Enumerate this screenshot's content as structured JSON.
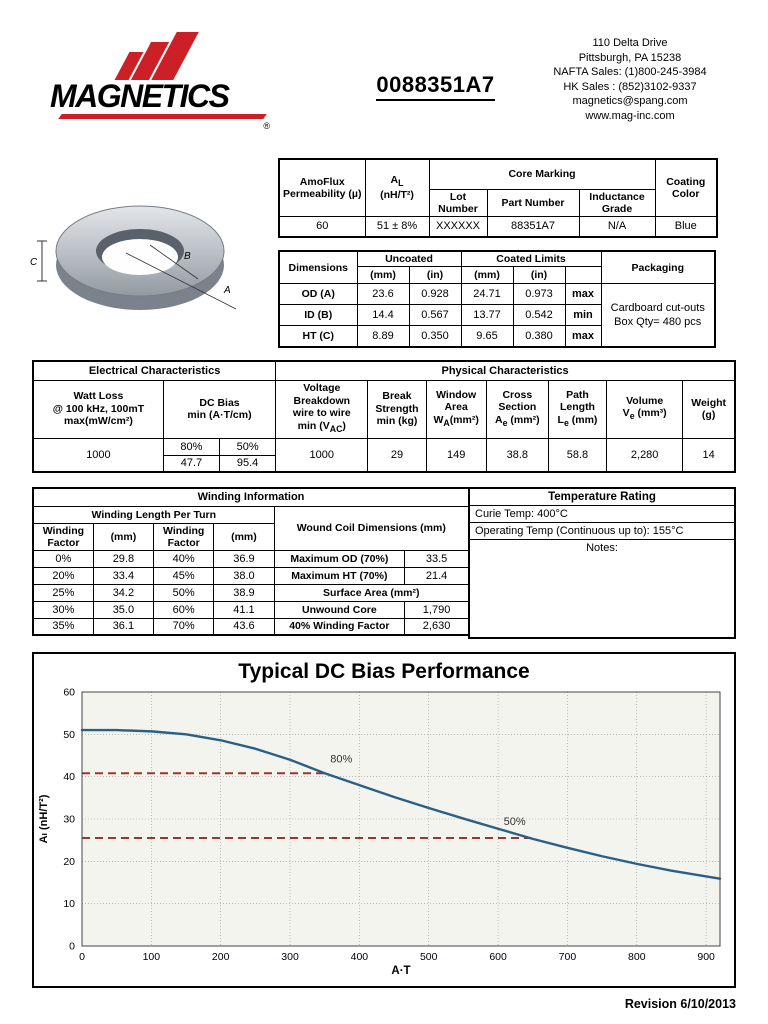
{
  "page": {
    "footer": "Revision 6/10/2013"
  },
  "header": {
    "brand": "MAGNETICS",
    "registered": "®",
    "part_number": "0088351A7",
    "address_lines": [
      "110 Delta Drive",
      "Pittsburgh, PA 15238",
      "NAFTA Sales: (1)800-245-3984",
      "HK Sales : (852)3102-9337",
      "magnetics@spang.com",
      "www.mag-inc.com"
    ]
  },
  "core_diagram": {
    "dim_a": "A",
    "dim_b": "B",
    "dim_c": "C"
  },
  "marking_table": {
    "permeability_header": "AmoFlux Permeability (µ)",
    "al_pre": "A",
    "al_sub": "L",
    "al_unit": "(nH/T²)",
    "core_marking_header": "Core Marking",
    "lot_header": "Lot Number",
    "part_header": "Part Number",
    "grade_header": "Inductance Grade",
    "coating_header": "Coating Color",
    "permeability": "60",
    "al_value": "51 ± 8%",
    "lot": "XXXXXX",
    "part": "88351A7",
    "grade": "N/A",
    "coating": "Blue"
  },
  "dimensions_table": {
    "dimensions_header": "Dimensions",
    "uncoated_header": "Uncoated",
    "coated_header": "Coated Limits",
    "packaging_header": "Packaging",
    "mm": "(mm)",
    "in": "(in)",
    "rows": [
      {
        "label": "OD (A)",
        "unc_mm": "23.6",
        "unc_in": "0.928",
        "coat_mm": "24.71",
        "coat_in": "0.973",
        "limit": "max"
      },
      {
        "label": "ID (B)",
        "unc_mm": "14.4",
        "unc_in": "0.567",
        "coat_mm": "13.77",
        "coat_in": "0.542",
        "limit": "min"
      },
      {
        "label": "HT (C)",
        "unc_mm": "8.89",
        "unc_in": "0.350",
        "coat_mm": "9.65",
        "coat_in": "0.380",
        "limit": "max"
      }
    ],
    "packaging_line1": "Cardboard cut-outs",
    "packaging_line2": "Box Qty= 480 pcs"
  },
  "characteristics": {
    "electrical_title": "Electrical Characteristics",
    "physical_title": "Physical Characteristics",
    "watt_loss_l1": "Watt Loss",
    "watt_loss_l2": "@ 100 kHz, 100mT",
    "watt_loss_l3": "max(mW/cm²)",
    "dc_bias_l1": "DC Bias",
    "dc_bias_l2": "min (A·T/cm)",
    "voltage_l1": "Voltage",
    "voltage_l2": "Breakdown",
    "voltage_l3": "wire to wire",
    "voltage_l4_pre": "min (V",
    "voltage_l4_sub": "AC",
    "voltage_l4_post": ")",
    "break_l1": "Break",
    "break_l2": "Strength",
    "break_l3": "min (kg)",
    "window_l1": "Window",
    "window_l2": "Area",
    "window_l3_pre": "W",
    "window_l3_sub": "A",
    "window_l3_post": "(mm²)",
    "cross_l1": "Cross",
    "cross_l2": "Section",
    "cross_l3_pre": "A",
    "cross_l3_sub": "e",
    "cross_l3_post": " (mm²)",
    "path_l1": "Path",
    "path_l2": "Length",
    "path_l3_pre": "L",
    "path_l3_sub": "e",
    "path_l3_post": " (mm)",
    "volume_l1": "Volume",
    "volume_l2_pre": "V",
    "volume_l2_sub": "e",
    "volume_l2_post": " (mm³)",
    "weight_l1": "Weight",
    "weight_l2": "(g)",
    "watt_loss_value": "1000",
    "dc_bias_pct_80": "80%",
    "dc_bias_pct_50": "50%",
    "dc_bias_val_80": "47.7",
    "dc_bias_val_50": "95.4",
    "voltage_value": "1000",
    "break_value": "29",
    "window_value": "149",
    "cross_value": "38.8",
    "path_value": "58.8",
    "volume_value": "2,280",
    "weight_value": "14"
  },
  "winding": {
    "title": "Winding Information",
    "subtitle": "Winding Length Per Turn",
    "col1": "Winding Factor",
    "col2": "(mm)",
    "col3": "Winding Factor",
    "col4": "(mm)",
    "rows": [
      [
        "0%",
        "29.8",
        "40%",
        "36.9"
      ],
      [
        "20%",
        "33.4",
        "45%",
        "38.0"
      ],
      [
        "25%",
        "34.2",
        "50%",
        "38.9"
      ],
      [
        "30%",
        "35.0",
        "60%",
        "41.1"
      ],
      [
        "35%",
        "36.1",
        "70%",
        "43.6"
      ]
    ],
    "wound_title": "Wound Coil Dimensions (mm)",
    "max_od_label": "Maximum OD (70%)",
    "max_od_value": "33.5",
    "max_ht_label": "Maximum HT (70%)",
    "max_ht_value": "21.4",
    "surface_title": "Surface Area (mm²)",
    "unwound_label": "Unwound Core",
    "unwound_value": "1,790",
    "wf40_label": "40% Winding Factor",
    "wf40_value": "2,630"
  },
  "temperature": {
    "title": "Temperature Rating",
    "curie": "Curie Temp:  400°C",
    "operating": "Operating Temp (Continuous up to): 155°C",
    "notes": "Notes:"
  },
  "chart_data": {
    "type": "line",
    "title": "Typical DC Bias Performance",
    "xlabel": "A·T",
    "ylabel": "Aₗ (nH/T²)",
    "xlim": [
      0,
      920
    ],
    "ylim": [
      0,
      60
    ],
    "x_ticks": [
      0,
      100,
      200,
      300,
      400,
      500,
      600,
      700,
      800,
      900
    ],
    "y_ticks": [
      0,
      10,
      20,
      30,
      40,
      50,
      60
    ],
    "grid": true,
    "legend": "none",
    "plot_bg": "#f4f4ef",
    "annotation_color": "#9c3434",
    "series": [
      {
        "name": "AL vs A·T",
        "color": "#2c5f86",
        "x": [
          0,
          50,
          100,
          150,
          200,
          250,
          300,
          350,
          400,
          450,
          500,
          550,
          600,
          650,
          700,
          750,
          800,
          850,
          920
        ],
        "y": [
          51,
          51,
          50.7,
          50,
          48.6,
          46.6,
          44,
          40.8,
          38,
          35.2,
          32.6,
          30.1,
          27.7,
          25.3,
          23.2,
          21.2,
          19.4,
          17.8,
          15.9
        ]
      }
    ],
    "annotations": [
      {
        "label": "80%",
        "y": 40.8,
        "x_end": 352,
        "text_x": 358,
        "text_y": 43.4
      },
      {
        "label": "50%",
        "y": 25.5,
        "x_end": 648,
        "text_x": 608,
        "text_y": 28.6
      }
    ]
  }
}
